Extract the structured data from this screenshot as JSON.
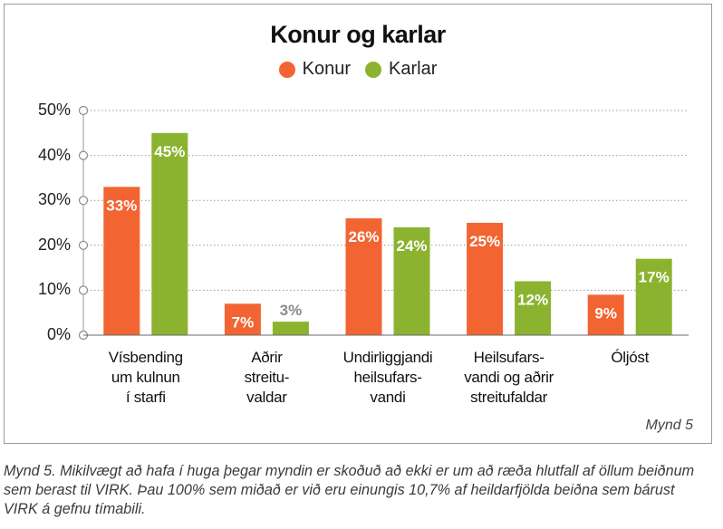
{
  "chart_data": {
    "type": "bar",
    "title": "Konur og karlar",
    "categories": [
      "Vísbending um kulnun í starfi",
      "Aðrir streitu-valdar",
      "Undirliggjandi heilsufars-vandi",
      "Heilsufars-vandi og aðrir streitufaldar",
      "Óljóst"
    ],
    "category_lines": [
      [
        "Vísbending",
        "um kulnun",
        "í starfi"
      ],
      [
        "Aðrir",
        "streitu-",
        "valdar"
      ],
      [
        "Undirliggjandi",
        "heilsufars-",
        "vandi"
      ],
      [
        "Heilsufars-",
        "vandi og aðrir",
        "streitufaldar"
      ],
      [
        "Óljóst"
      ]
    ],
    "series": [
      {
        "name": "Konur",
        "color": "#f26532",
        "values": [
          33,
          7,
          26,
          25,
          9
        ],
        "labels": [
          "33%",
          "7%",
          "26%",
          "25%",
          "9%"
        ]
      },
      {
        "name": "Karlar",
        "color": "#8cb32f",
        "values": [
          45,
          3,
          24,
          12,
          17
        ],
        "labels": [
          "45%",
          "3%",
          "24%",
          "12%",
          "17%"
        ]
      }
    ],
    "ylim": [
      0,
      50
    ],
    "yticks": [
      0,
      10,
      20,
      30,
      40,
      50
    ],
    "ytick_labels": [
      "0%",
      "10%",
      "20%",
      "30%",
      "40%",
      "50%"
    ],
    "grid": true,
    "legend_position": "top-center"
  },
  "figure_id": "Mynd 5",
  "caption": "Mynd 5. Mikilvægt að hafa í huga þegar myndin er skoðuð að ekki er um að ræða hlutfall af öllum beiðnum sem berast til VIRK. Þau 100% sem miðað er við eru einungis 10,7% af heildarfjölda beiðna sem bárust VIRK á gefnu tímabili."
}
